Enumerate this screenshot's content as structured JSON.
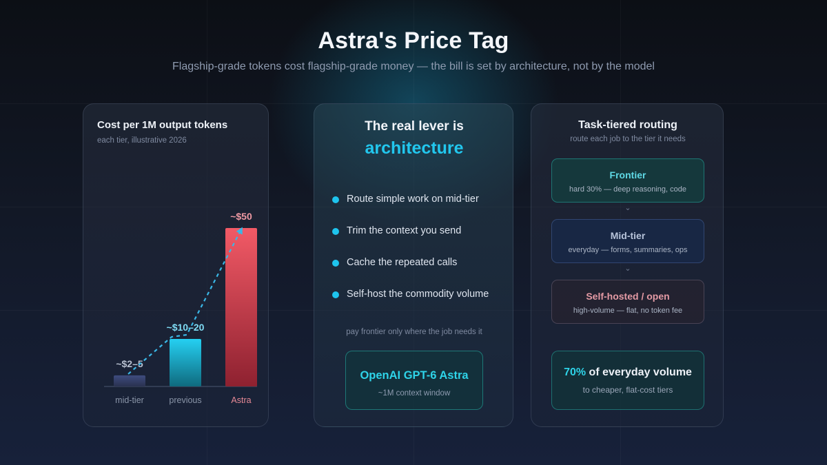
{
  "header": {
    "title": "Astra's Price Tag",
    "subtitle": "Flagship-grade tokens cost flagship-grade money — the bill is set by architecture, not by the model"
  },
  "cost_panel": {
    "title": "Cost per 1M output tokens",
    "subtitle": "each tier, illustrative 2026"
  },
  "chart_data": {
    "type": "bar",
    "title": "Cost per 1M output tokens",
    "subtitle": "each tier, illustrative 2026",
    "categories": [
      "mid-tier",
      "previous",
      "Astra"
    ],
    "values": [
      3.5,
      15,
      50
    ],
    "data_labels": [
      "~$2–5",
      "~$10–20",
      "~$50"
    ],
    "ylim": [
      0,
      50
    ],
    "grid": false,
    "trend_line": "dashed arrow rising across bars",
    "colors": [
      "#3b4a78",
      "#22c7ee",
      "#e8505f"
    ]
  },
  "lever_panel": {
    "heading_line1": "The real lever is",
    "heading_line2": "architecture",
    "items": [
      "Route simple work on mid-tier",
      "Trim the context you send",
      "Cache the repeated calls",
      "Self-host the commodity volume"
    ],
    "note": "pay frontier only where the job needs it",
    "model_name": "OpenAI GPT-6 Astra",
    "model_sub": "~1M context window"
  },
  "routing_panel": {
    "title": "Task-tiered routing",
    "subtitle": "route each job to the tier it needs",
    "tiers": [
      {
        "name": "Frontier",
        "desc": "hard 30% — deep reasoning, code"
      },
      {
        "name": "Mid-tier",
        "desc": "everyday — forms, summaries, ops"
      },
      {
        "name": "Self-hosted / open",
        "desc": "high-volume — flat, no token fee"
      }
    ],
    "volume_pct": "70%",
    "volume_text": " of everyday volume",
    "volume_sub": "to cheaper, flat-cost tiers"
  },
  "colors": {
    "accent_cyan": "#22c7ee",
    "accent_red": "#e8505f",
    "mid_tier_bar": "#3b4a78"
  }
}
